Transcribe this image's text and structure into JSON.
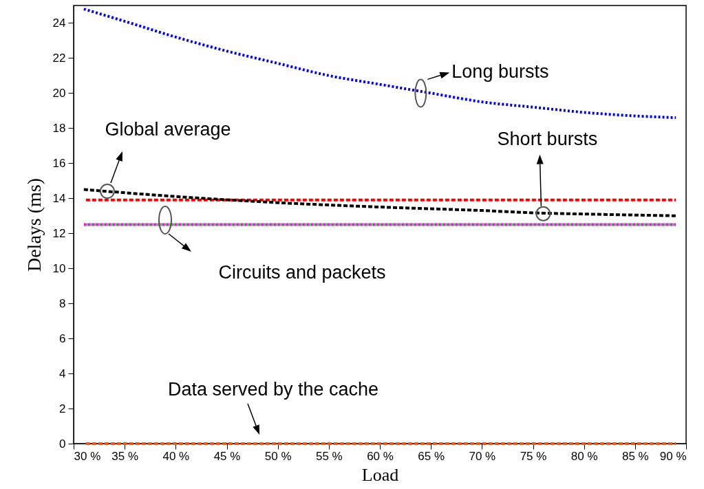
{
  "chart_data": {
    "type": "line",
    "xlabel": "Load",
    "ylabel": "Delays (ms)",
    "xlim": [
      30,
      90
    ],
    "ylim": [
      0,
      25
    ],
    "xticks": [
      {
        "value": 30,
        "label": "30 %"
      },
      {
        "value": 35,
        "label": "35 %"
      },
      {
        "value": 40,
        "label": "40 %"
      },
      {
        "value": 45,
        "label": "45 %"
      },
      {
        "value": 50,
        "label": "50 %"
      },
      {
        "value": 55,
        "label": "55 %"
      },
      {
        "value": 60,
        "label": "60 %"
      },
      {
        "value": 65,
        "label": "65 %"
      },
      {
        "value": 70,
        "label": "70 %"
      },
      {
        "value": 75,
        "label": "75 %"
      },
      {
        "value": 80,
        "label": "80 %"
      },
      {
        "value": 85,
        "label": "85 %"
      },
      {
        "value": 90,
        "label": "90 %"
      }
    ],
    "yticks": [
      0,
      2,
      4,
      6,
      8,
      10,
      12,
      14,
      16,
      18,
      20,
      22,
      24
    ],
    "grid": false,
    "marker": "none",
    "series": [
      {
        "color": "#0000ff",
        "line_style": "dotted",
        "x": [
          31,
          35,
          40,
          45,
          50,
          55,
          60,
          65,
          70,
          75,
          80,
          85,
          89
        ],
        "values": [
          24.8,
          24.1,
          23.2,
          22.4,
          21.7,
          21.0,
          20.5,
          20.0,
          19.5,
          19.2,
          18.9,
          18.7,
          18.6
        ]
      },
      {
        "color": "#ff0000",
        "line_style": "dashed",
        "x": [
          31,
          89
        ],
        "values": [
          13.9,
          13.9
        ]
      },
      {
        "color": "#000000",
        "line_style": "dashed",
        "x": [
          31,
          40,
          50,
          60,
          70,
          76,
          80,
          89
        ],
        "values": [
          14.5,
          14.1,
          13.75,
          13.5,
          13.3,
          13.15,
          13.1,
          13.0
        ]
      },
      {
        "color": "#00ff00",
        "line_style": "dotted",
        "x": [
          31,
          89
        ],
        "values": [
          12.5,
          12.5
        ]
      },
      {
        "color": "#ff00ff",
        "line_style": "dotted",
        "x": [
          31,
          89
        ],
        "values": [
          12.5,
          12.5
        ]
      },
      {
        "color": "#f05a1a",
        "line_style": "dashed",
        "x": [
          31,
          89
        ],
        "values": [
          0,
          0
        ]
      }
    ],
    "annotations": [
      {
        "text": "Long bursts",
        "x": 64,
        "y": 20.0
      },
      {
        "text": "Global average",
        "x": 33.3,
        "y": 14.4
      },
      {
        "text": "Short bursts",
        "x": 75.8,
        "y": 13.55
      },
      "Circuits and packets",
      {
        "text": "Data served by the cache",
        "x": 48,
        "y": 0
      }
    ]
  }
}
